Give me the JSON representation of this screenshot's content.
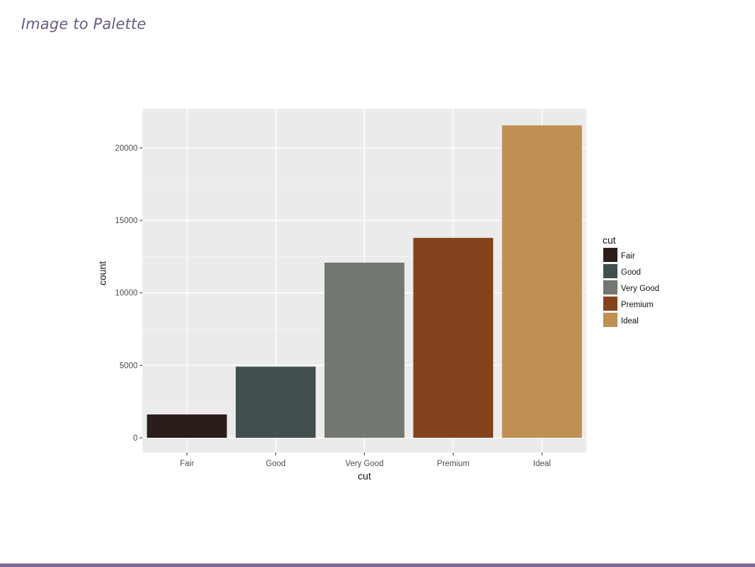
{
  "slide": {
    "title": "Image to Palette",
    "accent_color": "#7a6693"
  },
  "chart_data": {
    "type": "bar",
    "categories": [
      "Fair",
      "Good",
      "Very Good",
      "Premium",
      "Ideal"
    ],
    "values": [
      1610,
      4906,
      12082,
      13791,
      21551
    ],
    "colors": [
      "#2b1d1a",
      "#414f4e",
      "#72776f",
      "#84431d",
      "#bf9052"
    ],
    "title": "",
    "xlabel": "cut",
    "ylabel": "count",
    "ylim": [
      0,
      22700
    ],
    "yticks": [
      0,
      5000,
      10000,
      15000,
      20000
    ],
    "grid": true,
    "panel_background": "#ebebeb",
    "legend": {
      "title": "cut",
      "position": "right",
      "entries": [
        "Fair",
        "Good",
        "Very Good",
        "Premium",
        "Ideal"
      ]
    }
  }
}
